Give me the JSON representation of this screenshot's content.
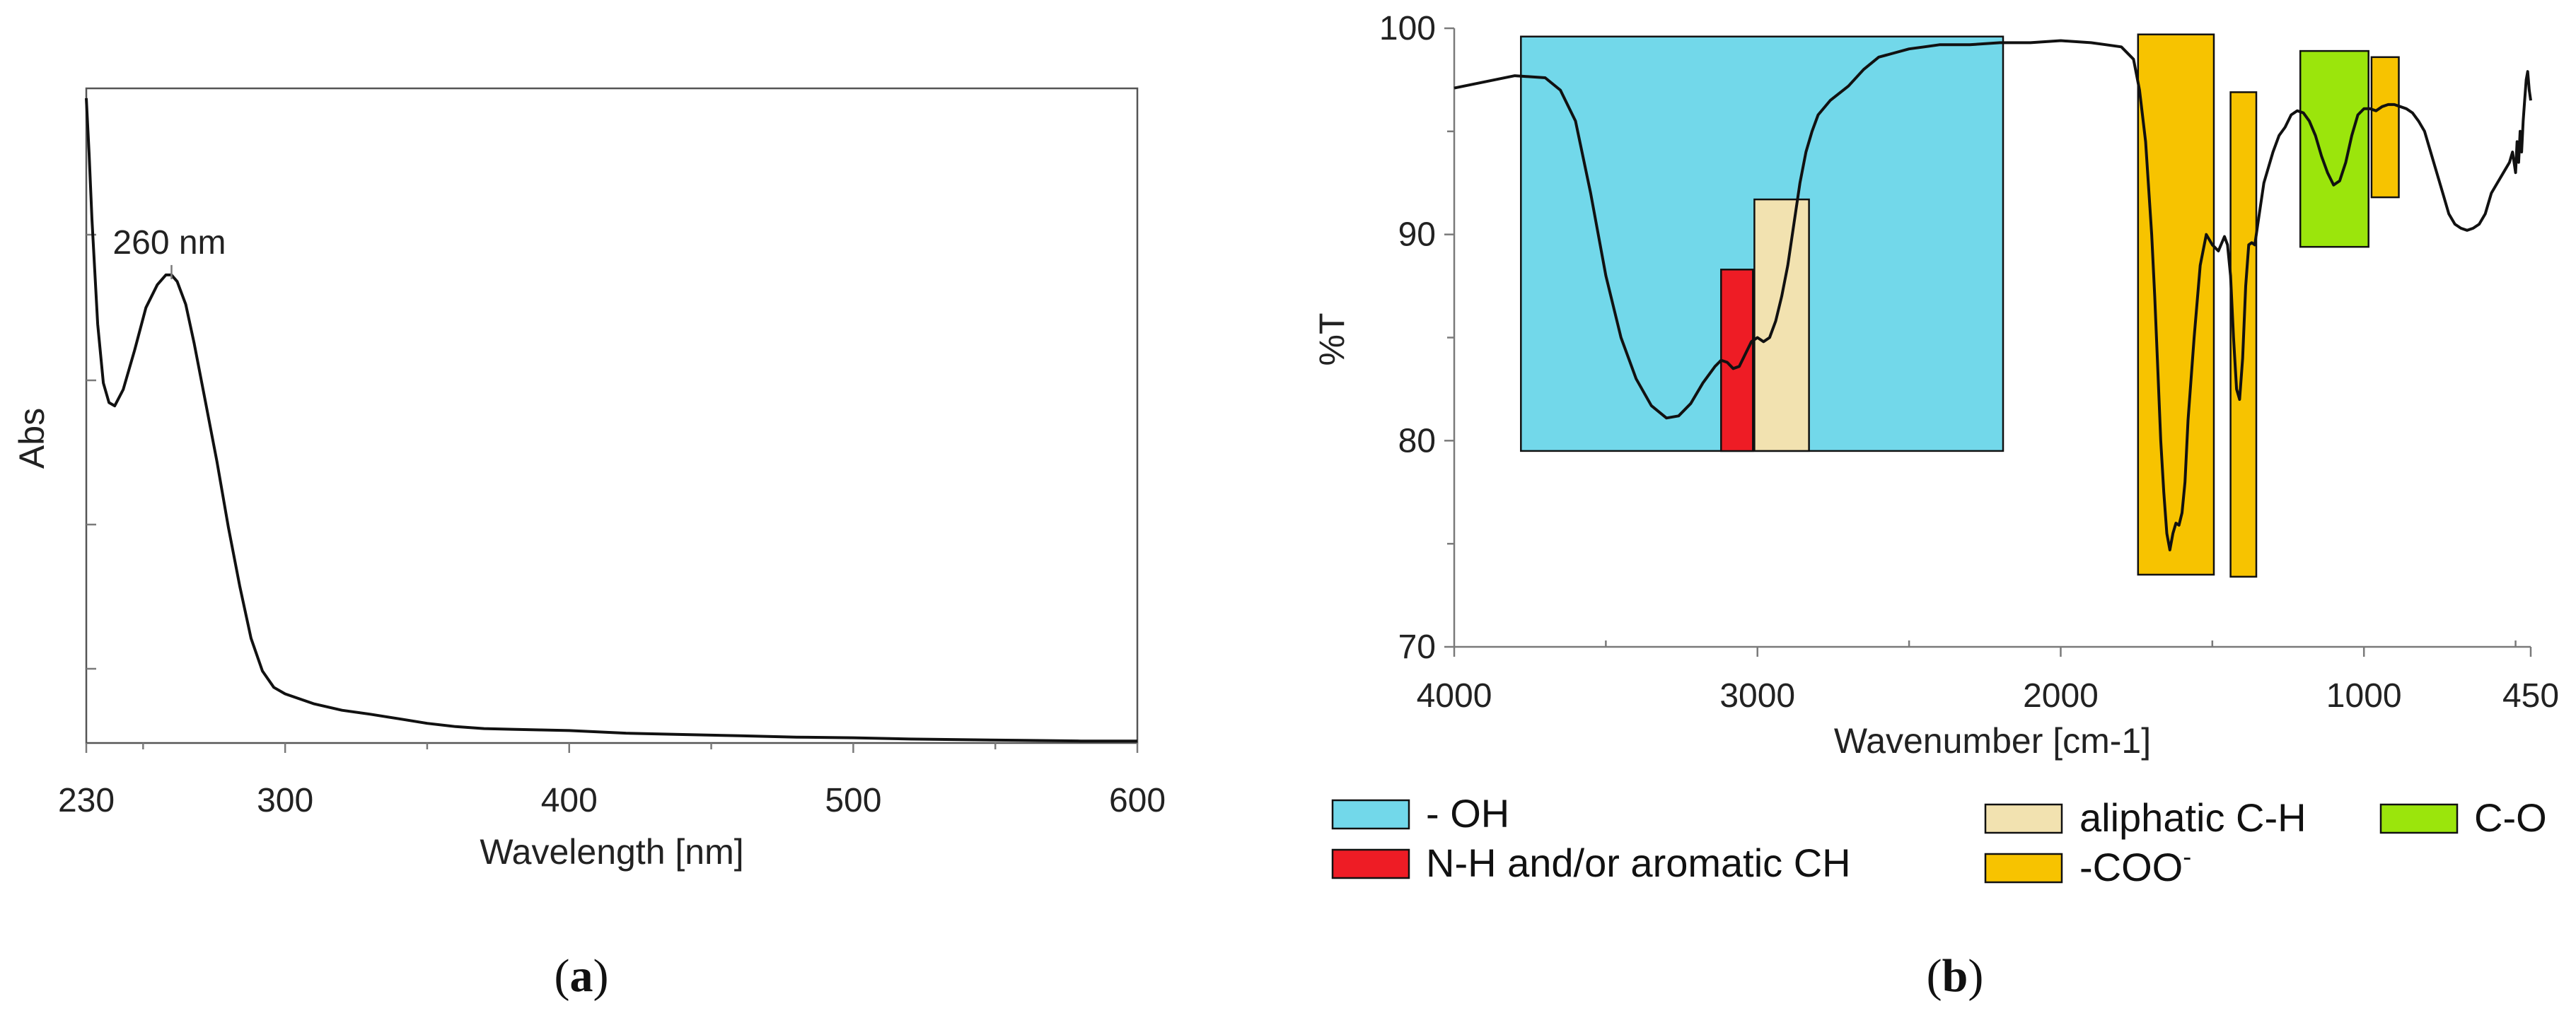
{
  "chart_data": [
    {
      "panel": "a",
      "type": "line",
      "xlabel": "Wavelength [nm]",
      "ylabel": "Abs",
      "xlim": [
        230,
        600
      ],
      "ylim": [
        0,
        1
      ],
      "x_ticks": [
        {
          "value": 230,
          "label": "230"
        },
        {
          "value": 300,
          "label": "300"
        },
        {
          "value": 400,
          "label": "400"
        },
        {
          "value": 500,
          "label": "500"
        },
        {
          "value": 600,
          "label": "600"
        }
      ],
      "grid": false,
      "annotations": [
        {
          "x": 260,
          "y": 0.715,
          "text": "260 nm"
        }
      ],
      "series": [
        {
          "x": [
            230,
            231,
            232,
            234,
            236,
            238,
            240,
            243,
            247,
            251,
            255,
            258,
            260,
            262,
            265,
            268,
            272,
            276,
            280,
            284,
            288,
            292,
            296,
            300,
            310,
            320,
            330,
            340,
            350,
            360,
            370,
            380,
            390,
            400,
            420,
            440,
            460,
            480,
            500,
            520,
            540,
            560,
            580,
            600
          ],
          "y": [
            0.985,
            0.9,
            0.8,
            0.64,
            0.55,
            0.52,
            0.515,
            0.54,
            0.6,
            0.665,
            0.7,
            0.715,
            0.715,
            0.705,
            0.67,
            0.61,
            0.52,
            0.43,
            0.33,
            0.24,
            0.16,
            0.11,
            0.085,
            0.075,
            0.06,
            0.05,
            0.044,
            0.037,
            0.03,
            0.025,
            0.022,
            0.021,
            0.02,
            0.019,
            0.015,
            0.013,
            0.011,
            0.009,
            0.008,
            0.006,
            0.005,
            0.004,
            0.003,
            0.003
          ]
        }
      ]
    },
    {
      "panel": "b",
      "type": "line",
      "xlabel": "Wavenumber [cm-1]",
      "ylabel": "%T",
      "xlim": [
        4000,
        450
      ],
      "ylim": [
        70,
        100
      ],
      "x_ticks": [
        {
          "value": 4000,
          "label": "4000"
        },
        {
          "value": 3000,
          "label": "3000"
        },
        {
          "value": 2000,
          "label": "2000"
        },
        {
          "value": 1000,
          "label": "1000"
        },
        {
          "value": 450,
          "label": "450"
        }
      ],
      "y_ticks": [
        {
          "value": 70,
          "label": "70"
        },
        {
          "value": 80,
          "label": "80"
        },
        {
          "value": 90,
          "label": "90"
        },
        {
          "value": 100,
          "label": "100"
        }
      ],
      "grid": false,
      "series": [
        {
          "x": [
            4000,
            3900,
            3800,
            3700,
            3650,
            3600,
            3550,
            3500,
            3450,
            3400,
            3350,
            3300,
            3260,
            3220,
            3180,
            3140,
            3120,
            3100,
            3080,
            3060,
            3040,
            3020,
            3000,
            2980,
            2960,
            2940,
            2920,
            2900,
            2880,
            2860,
            2840,
            2820,
            2800,
            2760,
            2700,
            2650,
            2600,
            2550,
            2500,
            2450,
            2400,
            2300,
            2200,
            2100,
            2000,
            1900,
            1850,
            1800,
            1760,
            1740,
            1720,
            1700,
            1690,
            1680,
            1670,
            1660,
            1650,
            1640,
            1630,
            1620,
            1610,
            1600,
            1590,
            1580,
            1560,
            1540,
            1520,
            1500,
            1480,
            1460,
            1450,
            1440,
            1430,
            1420,
            1410,
            1400,
            1390,
            1380,
            1370,
            1360,
            1350,
            1330,
            1300,
            1280,
            1260,
            1240,
            1220,
            1200,
            1180,
            1160,
            1140,
            1120,
            1100,
            1080,
            1060,
            1040,
            1020,
            1000,
            980,
            960,
            940,
            920,
            900,
            880,
            860,
            840,
            820,
            800,
            780,
            760,
            740,
            720,
            700,
            680,
            660,
            640,
            620,
            600,
            580,
            560,
            540,
            520,
            510,
            500,
            495,
            490,
            485,
            480,
            475,
            470,
            465,
            460,
            455,
            450
          ],
          "y": [
            97.1,
            97.4,
            97.7,
            97.6,
            97.0,
            95.5,
            92.0,
            88.0,
            85.0,
            83.0,
            81.7,
            81.1,
            81.2,
            81.8,
            82.8,
            83.6,
            83.9,
            83.8,
            83.5,
            83.6,
            84.2,
            84.8,
            85.0,
            84.8,
            85.0,
            85.8,
            87.0,
            88.5,
            90.5,
            92.5,
            94.0,
            95.0,
            95.8,
            96.5,
            97.2,
            98.0,
            98.6,
            98.8,
            99.0,
            99.1,
            99.2,
            99.2,
            99.3,
            99.3,
            99.4,
            99.3,
            99.2,
            99.1,
            98.5,
            97.0,
            94.5,
            90.0,
            87.0,
            83.5,
            80.0,
            77.5,
            75.5,
            74.7,
            75.5,
            76.0,
            75.9,
            76.5,
            78.0,
            81.0,
            85.0,
            88.5,
            90.0,
            89.5,
            89.2,
            89.9,
            89.5,
            88.0,
            85.0,
            82.5,
            82.0,
            84.0,
            87.5,
            89.5,
            89.6,
            89.5,
            90.5,
            92.5,
            94.0,
            94.8,
            95.2,
            95.8,
            96.0,
            95.9,
            95.5,
            94.8,
            93.8,
            93.0,
            92.4,
            92.6,
            93.5,
            94.8,
            95.8,
            96.1,
            96.1,
            96.0,
            96.2,
            96.3,
            96.3,
            96.2,
            96.1,
            95.9,
            95.5,
            95.0,
            94.0,
            93.0,
            92.0,
            91.0,
            90.5,
            90.3,
            90.2,
            90.3,
            90.5,
            91.0,
            92.0,
            92.5,
            93.0,
            93.5,
            94.0,
            93.0,
            94.5,
            93.5,
            95.0,
            94.0,
            95.5,
            96.5,
            97.5,
            97.9,
            97.0,
            96.5
          ]
        }
      ],
      "bands": [
        {
          "group": "oh",
          "x_high": 3780,
          "x_low": 2190,
          "y_bottom": 79.5,
          "y_top": 99.6,
          "color": "#72d8ea"
        },
        {
          "group": "nh",
          "x_high": 3120,
          "x_low": 3015,
          "y_bottom": 79.5,
          "y_top": 88.3,
          "color": "#ee1c25"
        },
        {
          "group": "aliphatic",
          "x_high": 3010,
          "x_low": 2830,
          "y_bottom": 79.5,
          "y_top": 91.7,
          "color": "#f2e2b0"
        },
        {
          "group": "coo",
          "x_high": 1745,
          "x_low": 1495,
          "y_bottom": 73.5,
          "y_top": 99.7,
          "color": "#f7c300"
        },
        {
          "group": "coo",
          "x_high": 1440,
          "x_low": 1355,
          "y_bottom": 73.4,
          "y_top": 96.9,
          "color": "#f7c300"
        },
        {
          "group": "co",
          "x_high": 1210,
          "x_low": 985,
          "y_bottom": 89.4,
          "y_top": 98.9,
          "color": "#9be50c"
        },
        {
          "group": "coo",
          "x_high": 975,
          "x_low": 885,
          "y_bottom": 91.8,
          "y_top": 98.6,
          "color": "#f7c300"
        }
      ],
      "legend": {
        "placement": "bottom",
        "entries": [
          {
            "key": "oh",
            "label": "- OH",
            "color": "#72d8ea"
          },
          {
            "key": "nh",
            "label": "N-H and/or aromatic CH",
            "color": "#ee1c25"
          },
          {
            "key": "aliphatic",
            "label": "aliphatic C-H",
            "color": "#f2e2b0"
          },
          {
            "key": "coo",
            "label": "-COO",
            "superscript": "-",
            "color": "#f7c300"
          },
          {
            "key": "co",
            "label": "C-O",
            "color": "#9be50c"
          }
        ]
      }
    }
  ],
  "panel_labels": {
    "a": {
      "open": "(",
      "letter": "a",
      "close": ")"
    },
    "b": {
      "open": "(",
      "letter": "b",
      "close": ")"
    }
  }
}
